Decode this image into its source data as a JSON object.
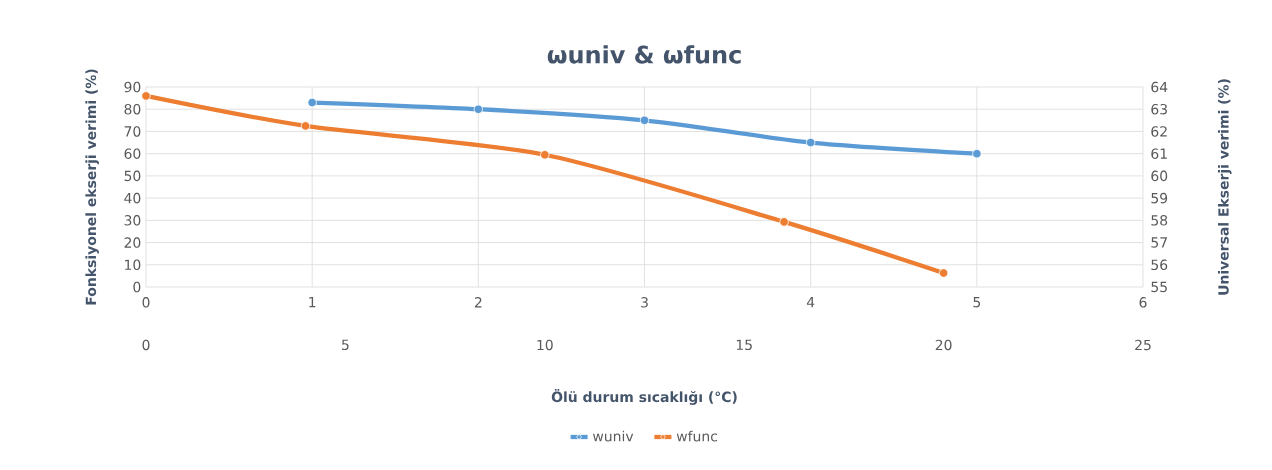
{
  "chart_data": {
    "type": "line",
    "title": "ωuniv & ωfunc",
    "xlabel": "Ölü durum sıcaklığı (°C)",
    "ylabel": "Fonksiyonel ekserji verimi (%)",
    "y2label": "Universal Ekserji verimi (%)",
    "xlim": [
      0,
      6
    ],
    "xticks": [
      0,
      1,
      2,
      3,
      4,
      5,
      6
    ],
    "x2lim": [
      0,
      25
    ],
    "x2ticks": [
      0,
      5,
      10,
      15,
      20,
      25
    ],
    "ylim": [
      0,
      90
    ],
    "yticks": [
      0,
      10,
      20,
      30,
      40,
      50,
      60,
      70,
      80,
      90
    ],
    "y2lim": [
      55,
      64
    ],
    "y2ticks": [
      55,
      56,
      57,
      58,
      59,
      60,
      61,
      62,
      63,
      64
    ],
    "series": [
      {
        "name": "wuniv",
        "color": "#5b9bd5",
        "axis": "y2",
        "x": [
          1,
          2,
          3,
          4,
          5
        ],
        "values": [
          63.3,
          63.0,
          62.5,
          61.5,
          61.0
        ]
      },
      {
        "name": "wfunc",
        "color": "#ed7d31",
        "axis": "x2",
        "x": [
          0,
          4,
          10,
          16,
          20
        ],
        "values": [
          86,
          72.5,
          59.5,
          29.3,
          6.3
        ]
      }
    ],
    "grid": true,
    "legend": "bottom",
    "marker": "circle"
  }
}
